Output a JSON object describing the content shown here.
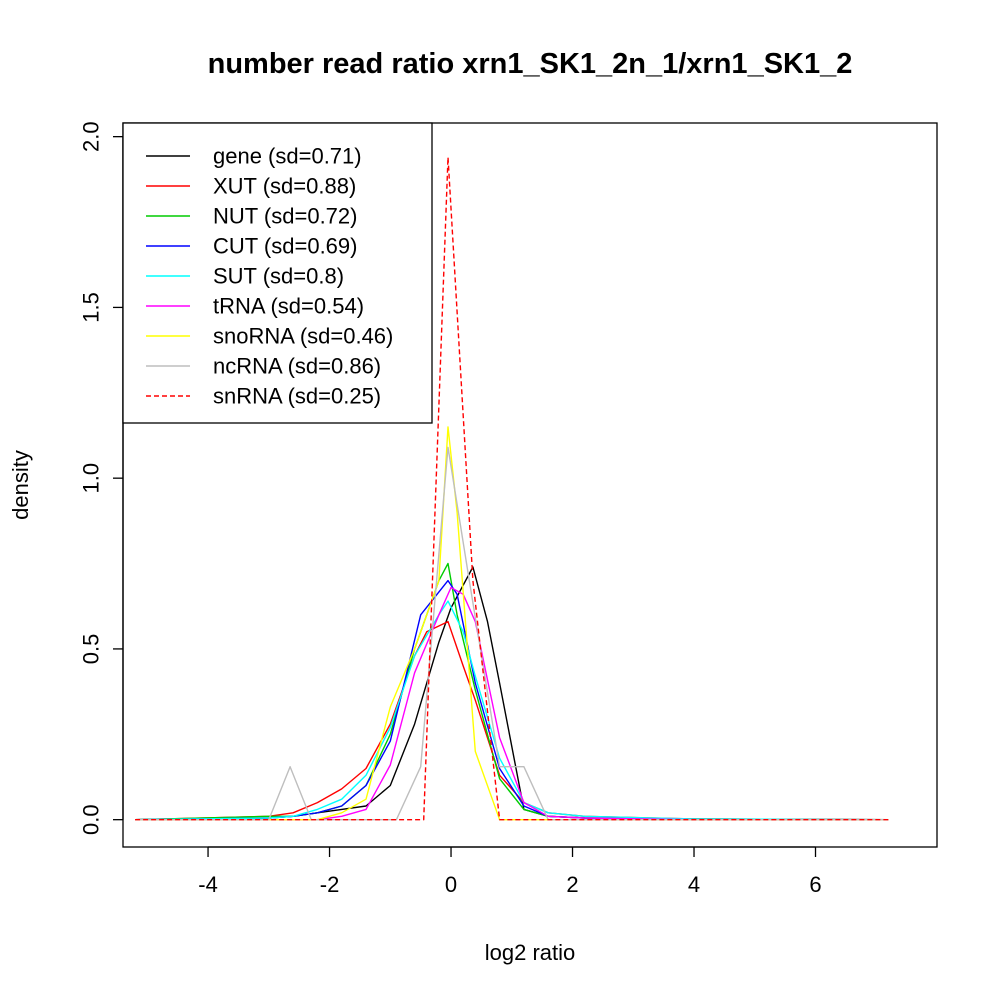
{
  "chart_data": {
    "type": "line",
    "title": "number read ratio xrn1_SK1_2n_1/xrn1_SK1_2",
    "xlabel": "log2 ratio",
    "ylabel": "density",
    "xlim": [
      -5.4,
      8.0
    ],
    "ylim": [
      -0.08,
      2.04
    ],
    "xticks": [
      -4,
      -2,
      0,
      2,
      4,
      6
    ],
    "xtick_labels": [
      "-4",
      "-2",
      "0",
      "2",
      "4",
      "6"
    ],
    "yticks": [
      0.0,
      0.5,
      1.0,
      1.5,
      2.0
    ],
    "ytick_labels": [
      "0.0",
      "0.5",
      "1.0",
      "1.5",
      "2.0"
    ],
    "grid": false,
    "legend_position": "top-left",
    "series": [
      {
        "name": "gene (sd=0.71)",
        "color": "#000000",
        "dash": false,
        "points": [
          [
            -5.2,
            0
          ],
          [
            -3.0,
            0.005
          ],
          [
            -2.6,
            0.01
          ],
          [
            -2.2,
            0.02
          ],
          [
            -1.8,
            0.03
          ],
          [
            -1.4,
            0.04
          ],
          [
            -1.0,
            0.1
          ],
          [
            -0.6,
            0.28
          ],
          [
            -0.2,
            0.52
          ],
          [
            0.0,
            0.62
          ],
          [
            0.36,
            0.74
          ],
          [
            0.6,
            0.58
          ],
          [
            0.8,
            0.4
          ],
          [
            1.2,
            0.03
          ],
          [
            1.6,
            0.01
          ],
          [
            2.2,
            0.005
          ],
          [
            4.0,
            0.002
          ],
          [
            7.2,
            0
          ]
        ]
      },
      {
        "name": "XUT (sd=0.88)",
        "color": "#ff0000",
        "dash": false,
        "points": [
          [
            -5.2,
            0
          ],
          [
            -3.0,
            0.01
          ],
          [
            -2.6,
            0.02
          ],
          [
            -2.2,
            0.05
          ],
          [
            -1.8,
            0.09
          ],
          [
            -1.4,
            0.15
          ],
          [
            -1.0,
            0.28
          ],
          [
            -0.6,
            0.48
          ],
          [
            -0.4,
            0.55
          ],
          [
            -0.05,
            0.58
          ],
          [
            0.2,
            0.45
          ],
          [
            0.4,
            0.35
          ],
          [
            0.8,
            0.13
          ],
          [
            1.2,
            0.05
          ],
          [
            1.6,
            0.02
          ],
          [
            2.2,
            0.01
          ],
          [
            4.0,
            0.002
          ],
          [
            7.2,
            0
          ]
        ]
      },
      {
        "name": "NUT (sd=0.72)",
        "color": "#00cc00",
        "dash": false,
        "points": [
          [
            -5.2,
            0
          ],
          [
            -3.0,
            0.01
          ],
          [
            -2.6,
            0.01
          ],
          [
            -2.2,
            0.02
          ],
          [
            -1.8,
            0.04
          ],
          [
            -1.4,
            0.1
          ],
          [
            -1.0,
            0.25
          ],
          [
            -0.6,
            0.5
          ],
          [
            -0.2,
            0.7
          ],
          [
            -0.05,
            0.75
          ],
          [
            0.1,
            0.6
          ],
          [
            0.4,
            0.38
          ],
          [
            0.8,
            0.12
          ],
          [
            1.2,
            0.03
          ],
          [
            1.6,
            0.01
          ],
          [
            2.2,
            0.005
          ],
          [
            4.0,
            0
          ],
          [
            7.2,
            0
          ]
        ]
      },
      {
        "name": "CUT (sd=0.69)",
        "color": "#0000ff",
        "dash": false,
        "points": [
          [
            -5.2,
            0
          ],
          [
            -3.0,
            0.005
          ],
          [
            -2.6,
            0.01
          ],
          [
            -2.2,
            0.02
          ],
          [
            -1.8,
            0.04
          ],
          [
            -1.4,
            0.1
          ],
          [
            -1.0,
            0.23
          ],
          [
            -0.5,
            0.6
          ],
          [
            -0.05,
            0.7
          ],
          [
            0.1,
            0.66
          ],
          [
            0.4,
            0.4
          ],
          [
            0.8,
            0.15
          ],
          [
            1.2,
            0.04
          ],
          [
            1.6,
            0.01
          ],
          [
            2.2,
            0.005
          ],
          [
            4.0,
            0
          ],
          [
            7.2,
            0
          ]
        ]
      },
      {
        "name": "SUT (sd=0.8)",
        "color": "#00ffff",
        "dash": false,
        "points": [
          [
            -5.2,
            0
          ],
          [
            -3.0,
            0.005
          ],
          [
            -2.6,
            0.01
          ],
          [
            -2.2,
            0.03
          ],
          [
            -1.8,
            0.06
          ],
          [
            -1.4,
            0.13
          ],
          [
            -1.0,
            0.27
          ],
          [
            -0.6,
            0.48
          ],
          [
            -0.2,
            0.6
          ],
          [
            -0.05,
            0.64
          ],
          [
            0.2,
            0.55
          ],
          [
            0.4,
            0.42
          ],
          [
            0.8,
            0.18
          ],
          [
            1.2,
            0.05
          ],
          [
            1.6,
            0.02
          ],
          [
            2.2,
            0.01
          ],
          [
            4.0,
            0.002
          ],
          [
            7.2,
            0
          ]
        ]
      },
      {
        "name": "tRNA (sd=0.54)",
        "color": "#ff00ff",
        "dash": false,
        "points": [
          [
            -5.2,
            0
          ],
          [
            -2.2,
            0
          ],
          [
            -1.8,
            0.01
          ],
          [
            -1.4,
            0.03
          ],
          [
            -1.0,
            0.16
          ],
          [
            -0.6,
            0.43
          ],
          [
            -0.2,
            0.6
          ],
          [
            0.0,
            0.68
          ],
          [
            0.2,
            0.66
          ],
          [
            0.4,
            0.58
          ],
          [
            0.8,
            0.24
          ],
          [
            1.2,
            0.05
          ],
          [
            1.6,
            0.01
          ],
          [
            2.2,
            0.005
          ],
          [
            4.0,
            0
          ],
          [
            7.2,
            0
          ]
        ]
      },
      {
        "name": "snoRNA (sd=0.46)",
        "color": "#ffff00",
        "dash": false,
        "points": [
          [
            -5.2,
            0
          ],
          [
            -2.2,
            0
          ],
          [
            -1.8,
            0.02
          ],
          [
            -1.4,
            0.06
          ],
          [
            -1.0,
            0.33
          ],
          [
            -0.6,
            0.5
          ],
          [
            -0.2,
            0.7
          ],
          [
            -0.05,
            1.15
          ],
          [
            0.1,
            0.9
          ],
          [
            0.4,
            0.2
          ],
          [
            0.8,
            0.0
          ],
          [
            1.2,
            0
          ],
          [
            7.2,
            0
          ]
        ]
      },
      {
        "name": "ncRNA (sd=0.86)",
        "color": "#bebebe",
        "dash": false,
        "points": [
          [
            -5.2,
            0
          ],
          [
            -3.0,
            0
          ],
          [
            -2.65,
            0.155
          ],
          [
            -2.3,
            0
          ],
          [
            -0.9,
            0
          ],
          [
            -0.5,
            0.155
          ],
          [
            -0.05,
            1.09
          ],
          [
            0.3,
            0.7
          ],
          [
            0.8,
            0.155
          ],
          [
            1.2,
            0.155
          ],
          [
            1.6,
            0
          ],
          [
            7.2,
            0
          ]
        ]
      },
      {
        "name": "snRNA (sd=0.25)",
        "color": "#ff0000",
        "dash": true,
        "points": [
          [
            -5.2,
            0
          ],
          [
            -0.45,
            0
          ],
          [
            -0.05,
            1.94
          ],
          [
            0.36,
            0.7
          ],
          [
            0.8,
            0
          ],
          [
            7.2,
            0
          ]
        ]
      }
    ]
  }
}
